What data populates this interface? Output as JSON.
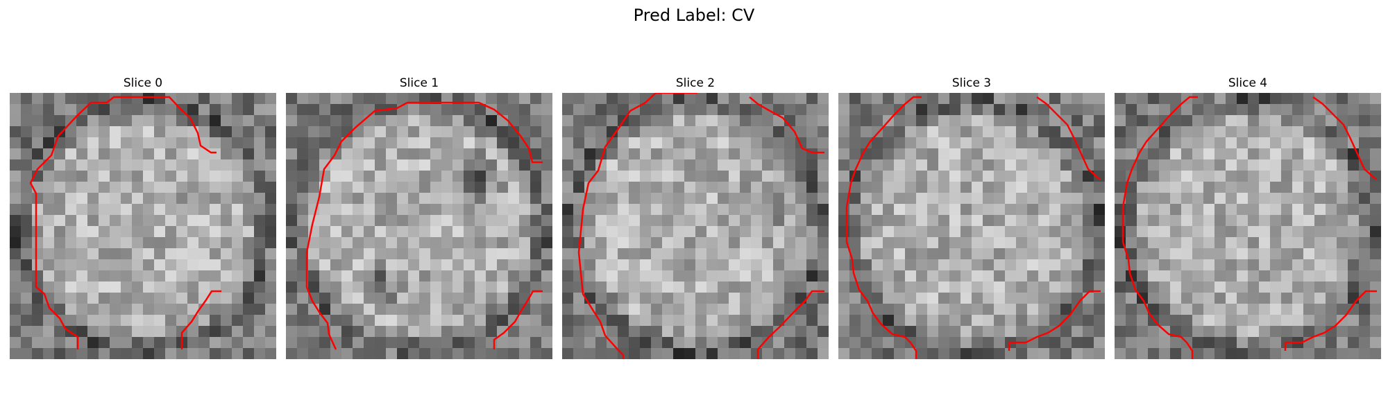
{
  "figure": {
    "title": "Pred Label: CV"
  },
  "slices": [
    {
      "title": "Slice 0"
    },
    {
      "title": "Slice 1"
    },
    {
      "title": "Slice 2"
    },
    {
      "title": "Slice 3"
    },
    {
      "title": "Slice 4"
    }
  ],
  "colors": {
    "contour": "#ff0000",
    "background": "#ffffff"
  }
}
